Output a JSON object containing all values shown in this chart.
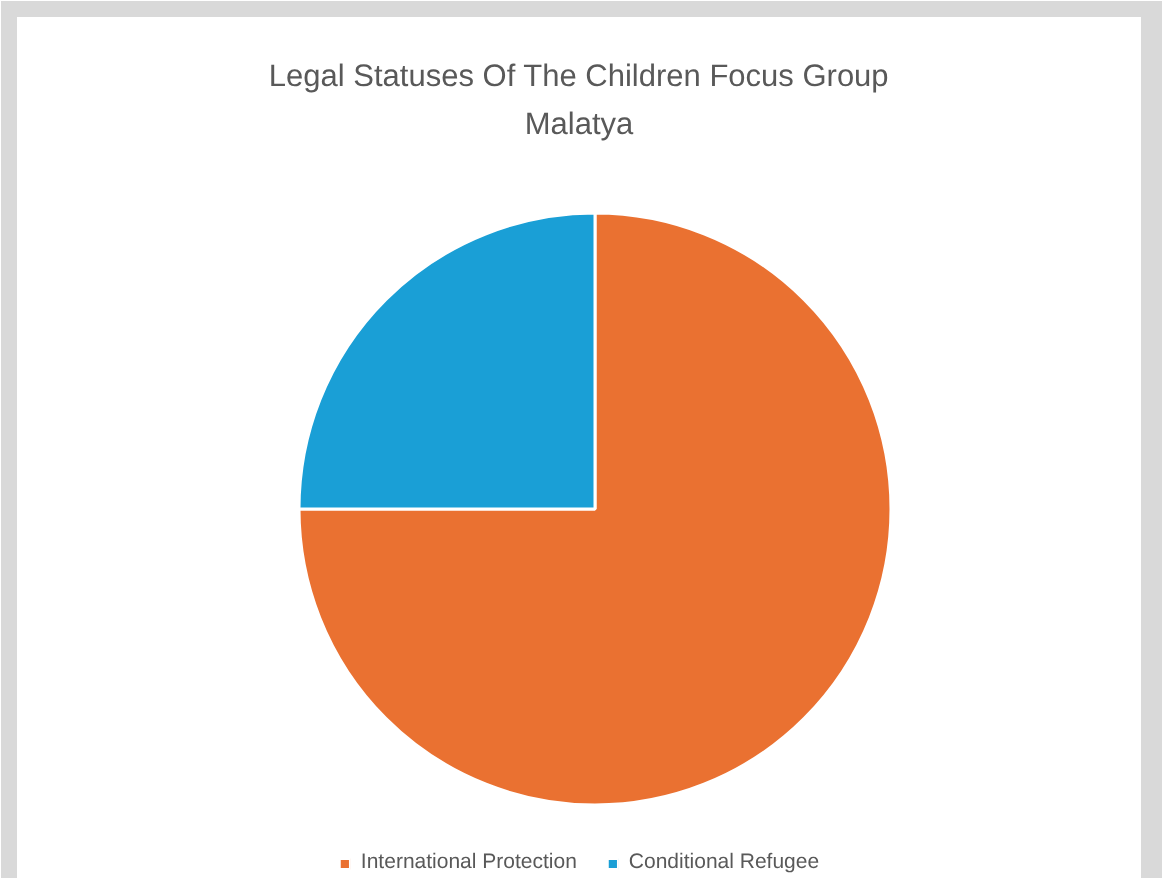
{
  "chart_data": {
    "type": "pie",
    "title": "Legal Statuses Of The Children Focus Group Malatya",
    "categories": [
      "International Protection",
      "Conditional Refugee"
    ],
    "values": [
      75,
      25
    ],
    "colors": [
      "#ea7131",
      "#1a9fd6"
    ],
    "legend": "bottom"
  }
}
